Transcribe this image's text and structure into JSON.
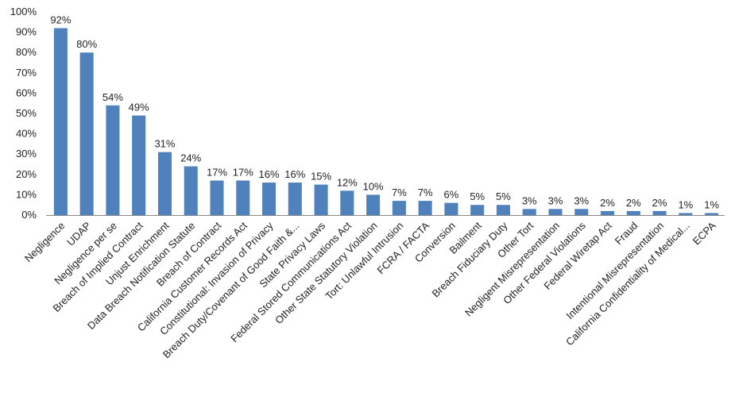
{
  "chart_data": {
    "type": "bar",
    "title": "",
    "xlabel": "",
    "ylabel": "",
    "ylim": [
      0,
      100
    ],
    "y_ticks": [
      "0%",
      "10%",
      "20%",
      "30%",
      "40%",
      "50%",
      "60%",
      "70%",
      "80%",
      "90%",
      "100%"
    ],
    "value_suffix": "%",
    "grid": false,
    "legend": "none",
    "bar_color": "#4f81bd",
    "categories": [
      "Negligence",
      "UDAP",
      "Negligence per se",
      "Breach of Implied Contract",
      "Unjust Enrichment",
      "Data Breach Notification Statute",
      "Breach of Contract",
      "California Customer Records Act",
      "Constitutional: Invasion of Privacy",
      "Breach Duty/Covenant of Good Faith &...",
      "State Privacy Laws",
      "Federal Stored Communications Act",
      "Other State Statutory Violation",
      "Tort: Unlawful Intrusion",
      "FCRA / FACTA",
      "Conversion",
      "Bailment",
      "Breach Fiduciary Duty",
      "Other Tort",
      "Negligent Misrepresentation",
      "Other Federal Violations",
      "Federal Wiretap Act",
      "Fraud",
      "Intentional Misrepresentation",
      "California Confidentiality of Medical...",
      "ECPA"
    ],
    "values": [
      92,
      80,
      54,
      49,
      31,
      24,
      17,
      17,
      16,
      16,
      15,
      12,
      10,
      7,
      7,
      6,
      5,
      5,
      3,
      3,
      3,
      2,
      2,
      2,
      1,
      1
    ],
    "data_labels": [
      "92%",
      "80%",
      "54%",
      "49%",
      "31%",
      "24%",
      "17%",
      "17%",
      "16%",
      "16%",
      "15%",
      "12%",
      "10%",
      "7%",
      "7%",
      "6%",
      "5%",
      "5%",
      "3%",
      "3%",
      "3%",
      "2%",
      "2%",
      "2%",
      "1%",
      "1%"
    ]
  }
}
